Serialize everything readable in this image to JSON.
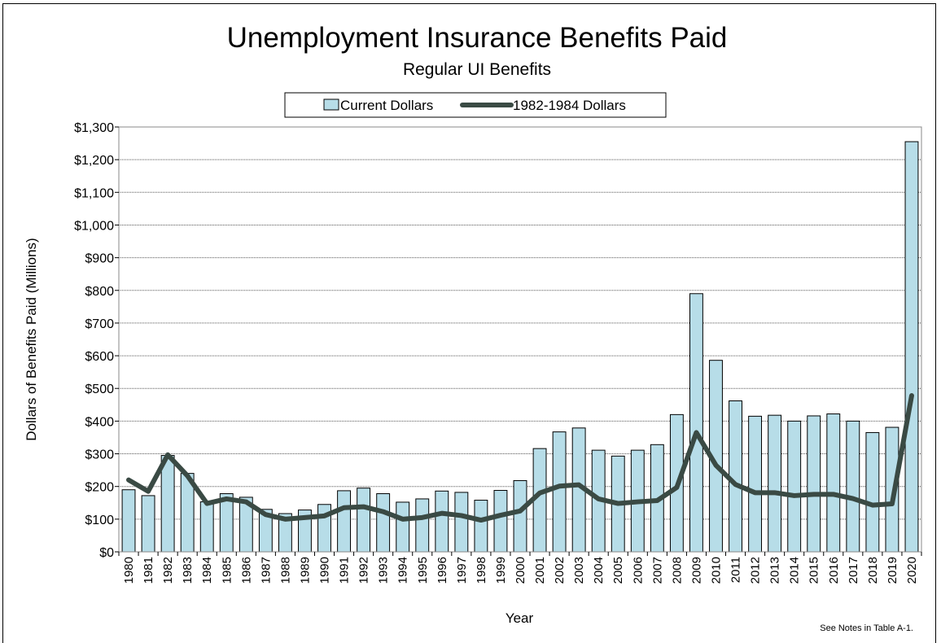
{
  "chart_data": {
    "type": "bar",
    "title": "Unemployment Insurance Benefits Paid",
    "subtitle": "Regular UI Benefits",
    "xlabel": "Year",
    "ylabel": "Dollars of Benefits Paid (Millions)",
    "ylim": [
      0,
      1300
    ],
    "ytick_step": 100,
    "ytick_labels": [
      "$0",
      "$100",
      "$200",
      "$300",
      "$400",
      "$500",
      "$600",
      "$700",
      "$800",
      "$900",
      "$1,000",
      "$1,100",
      "$1,200",
      "$1,300"
    ],
    "grid": true,
    "legend_position": "top-center",
    "categories": [
      "1980",
      "1981",
      "1982",
      "1983",
      "1984",
      "1985",
      "1986",
      "1987",
      "1988",
      "1989",
      "1990",
      "1991",
      "1992",
      "1993",
      "1994",
      "1995",
      "1996",
      "1997",
      "1998",
      "1999",
      "2000",
      "2001",
      "2002",
      "2003",
      "2004",
      "2005",
      "2006",
      "2007",
      "2008",
      "2009",
      "2010",
      "2011",
      "2012",
      "2013",
      "2014",
      "2015",
      "2016",
      "2017",
      "2018",
      "2019",
      "2020"
    ],
    "series": [
      {
        "name": "Current Dollars",
        "kind": "bar",
        "color": "#b7dde8",
        "values": [
          190,
          172,
          295,
          240,
          153,
          178,
          167,
          130,
          117,
          128,
          145,
          187,
          195,
          178,
          152,
          162,
          186,
          182,
          158,
          188,
          218,
          316,
          367,
          379,
          311,
          293,
          311,
          328,
          420,
          790,
          586,
          462,
          415,
          418,
          400,
          416,
          422,
          400,
          365,
          381,
          1255
        ]
      },
      {
        "name": "1982-1984 Dollars",
        "kind": "line",
        "color": "#3a4a44",
        "values": [
          220,
          185,
          297,
          233,
          148,
          162,
          153,
          114,
          100,
          105,
          110,
          135,
          138,
          123,
          100,
          105,
          118,
          111,
          97,
          112,
          125,
          180,
          201,
          205,
          162,
          148,
          153,
          157,
          197,
          365,
          265,
          206,
          181,
          181,
          172,
          176,
          176,
          163,
          143,
          147,
          478
        ]
      }
    ],
    "note": "See Notes in Table A-1."
  }
}
